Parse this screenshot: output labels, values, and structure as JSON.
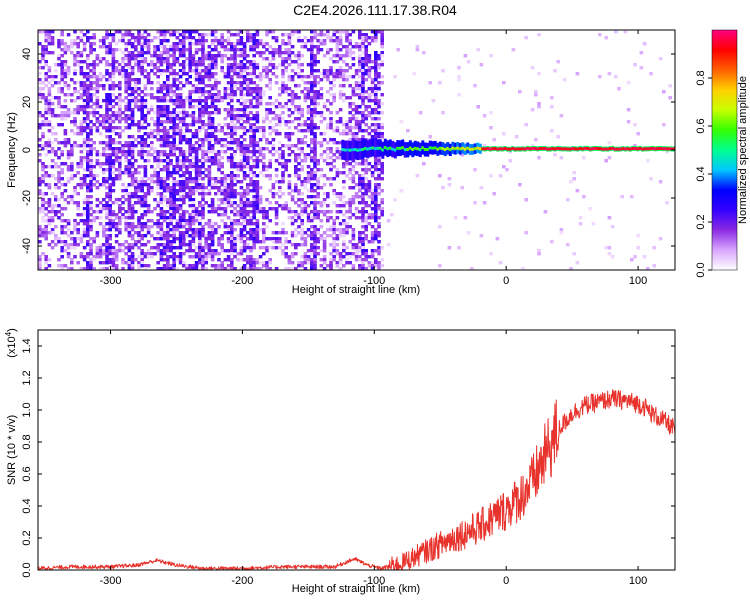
{
  "title": "C2E4.2026.111.17.38.R04",
  "chart_data": [
    {
      "type": "heatmap",
      "xlabel": "Height of straight line (km)",
      "ylabel": "Frequency (Hz)",
      "xlim": [
        -355,
        128
      ],
      "ylim": [
        -50,
        50
      ],
      "xticks": [
        -300,
        -200,
        -100,
        0,
        100
      ],
      "yticks": [
        -40,
        -20,
        0,
        20,
        40
      ],
      "colorbar": {
        "label": "Normalized spectral amplitude",
        "range": [
          0.0,
          1.0
        ],
        "ticks": [
          0.0,
          0.2,
          0.4,
          0.6,
          0.8
        ],
        "tick_labels": [
          "0.0",
          "0.2",
          "0.4",
          "0.6",
          "0.8"
        ],
        "colors": [
          "#ffffff",
          "#d9a6ff",
          "#8a2be2",
          "#3300ff",
          "#0000ff",
          "#00c8ff",
          "#00ff90",
          "#33ff00",
          "#c8ff00",
          "#ffd000",
          "#ff6000",
          "#ff0000",
          "#ff0080"
        ]
      },
      "features": {
        "noise_region_x": [
          -355,
          -95
        ],
        "carrier_line_frequency": 0.5,
        "carrier_start_x": -125,
        "carrier_full_amplitude_from_x": -20
      }
    },
    {
      "type": "line",
      "xlabel": "Height of straight line (km)",
      "ylabel": "SNR (10 * v/v)",
      "ylabel_exponent": "(x10",
      "ylabel_exponent_power": "4",
      "ylabel_exponent_close": ")",
      "xlim": [
        -355,
        128
      ],
      "ylim": [
        0,
        1.5
      ],
      "xticks": [
        -300,
        -200,
        -100,
        0,
        100
      ],
      "yticks": [
        0.0,
        0.2,
        0.4,
        0.6,
        0.8,
        1.0,
        1.2,
        1.4
      ],
      "ytick_labels": [
        "0.0",
        "0.2",
        "0.4",
        "0.6",
        "0.8",
        "1.0",
        "1.2",
        "1.4"
      ],
      "series": [
        {
          "color": "#e8322c",
          "x": [
            -355,
            -330,
            -300,
            -280,
            -265,
            -250,
            -230,
            -200,
            -170,
            -150,
            -130,
            -115,
            -105,
            -95,
            -80,
            -60,
            -40,
            -20,
            0,
            10,
            20,
            30,
            40,
            50,
            60,
            70,
            80,
            90,
            100,
            105,
            110,
            120,
            128
          ],
          "y": [
            0.01,
            0.02,
            0.02,
            0.03,
            0.06,
            0.03,
            0.01,
            0.01,
            0.02,
            0.02,
            0.02,
            0.07,
            0.03,
            0.01,
            0.04,
            0.12,
            0.2,
            0.27,
            0.38,
            0.45,
            0.55,
            0.72,
            0.88,
            0.98,
            1.03,
            1.05,
            1.07,
            1.06,
            1.04,
            1.02,
            0.98,
            0.93,
            0.88
          ]
        }
      ]
    }
  ]
}
